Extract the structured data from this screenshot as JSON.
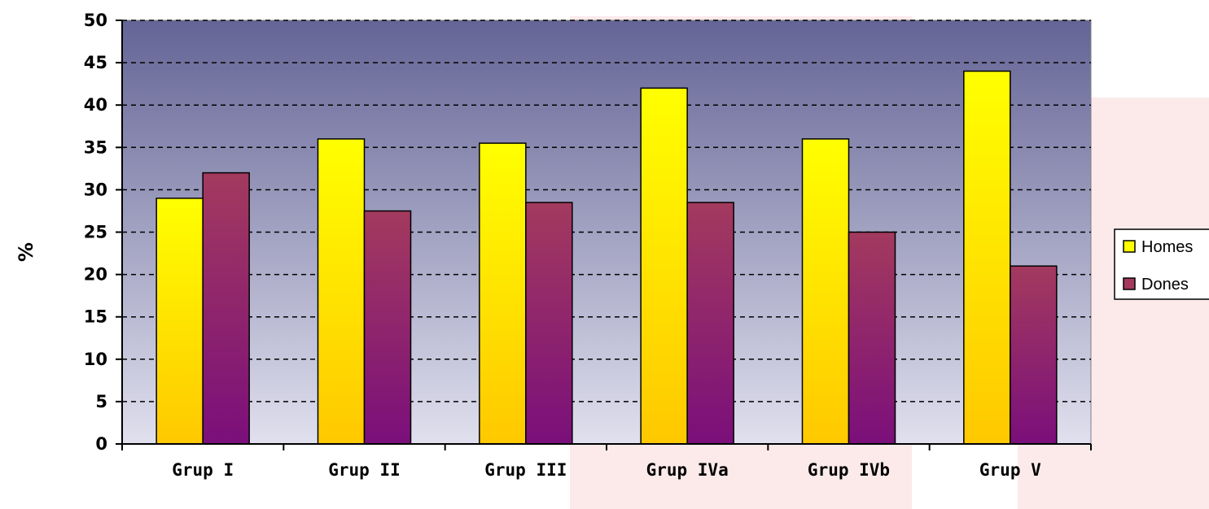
{
  "chart_data": {
    "type": "bar",
    "categories": [
      "Grup I",
      "Grup II",
      "Grup III",
      "Grup IVa",
      "Grup IVb",
      "Grup V"
    ],
    "series": [
      {
        "name": "Homes",
        "values": [
          29,
          36,
          35.5,
          42,
          36,
          44
        ],
        "color": "#ffff00",
        "color_bottom": "#ffc800"
      },
      {
        "name": "Dones",
        "values": [
          32,
          27.5,
          28.5,
          28.5,
          25,
          21
        ],
        "color": "#a33a5e",
        "color_bottom": "#7b0f7b"
      }
    ],
    "title": "",
    "xlabel": "",
    "ylabel": "%",
    "ylim": [
      0,
      50
    ],
    "yticks": [
      0,
      5,
      10,
      15,
      20,
      25,
      30,
      35,
      40,
      45,
      50
    ],
    "grid": true,
    "legend_position": "right",
    "plot_background": {
      "top": "#646496",
      "bottom": "#e0e0ee"
    },
    "watermark_color": "#e45c5c"
  }
}
